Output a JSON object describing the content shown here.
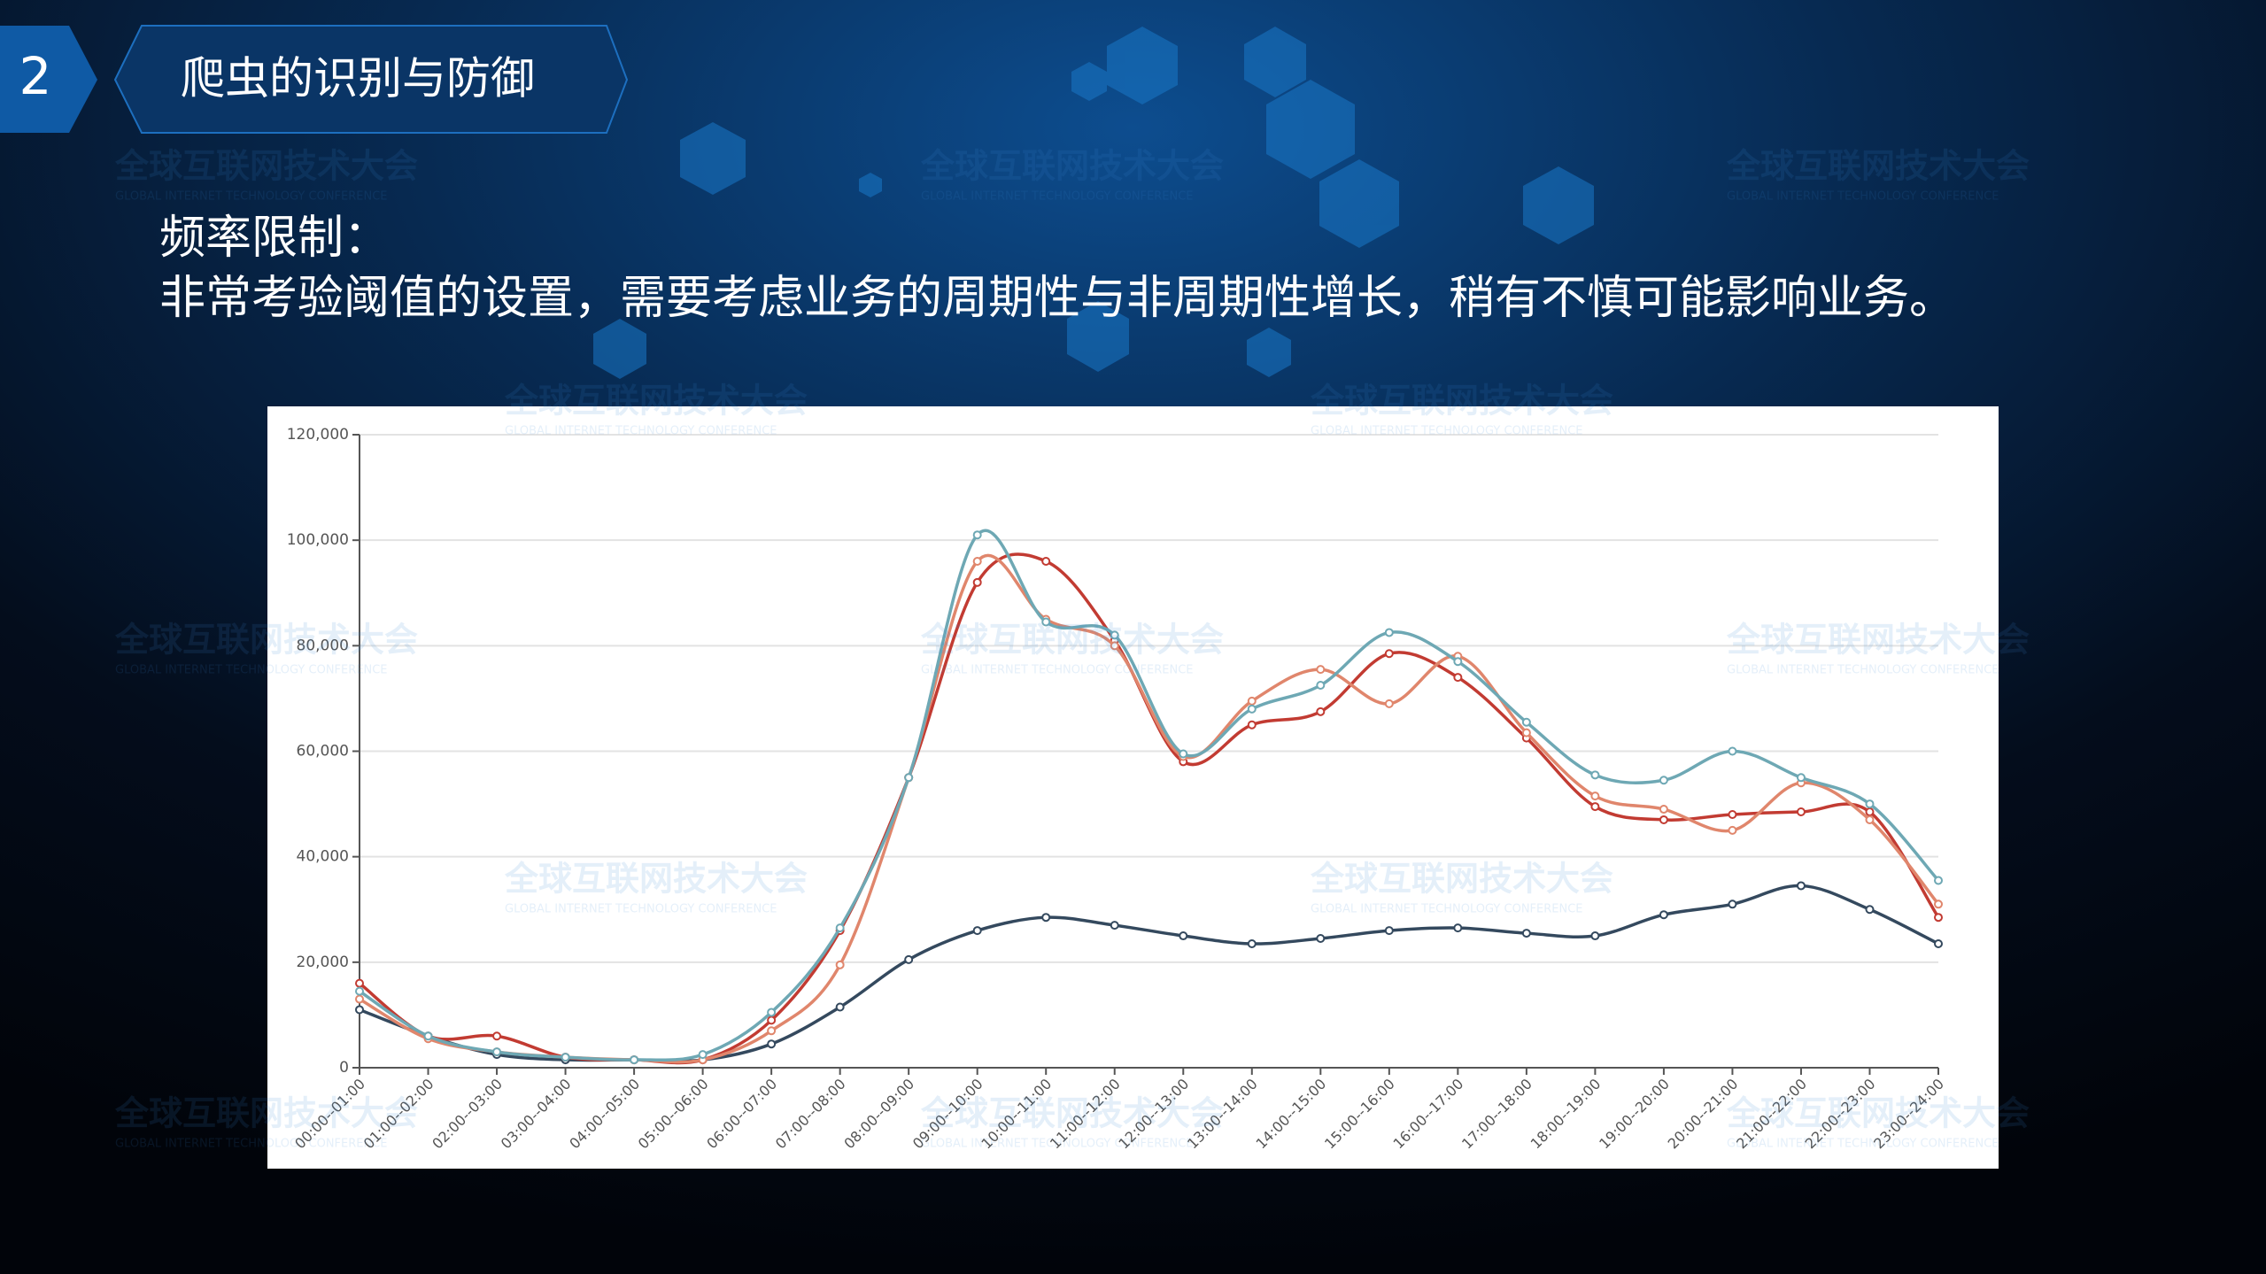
{
  "slide": {
    "number": "2",
    "title": "爬虫的识别与防御",
    "heading": "频率限制：",
    "body": "非常考验阈值的设置，需要考虑业务的周期性与非周期性增长，稍有不慎可能影响业务。",
    "watermark": [
      "全球互联网技术大会",
      "GLOBAL INTERNET TECHNOLOGY CONFERENCE"
    ]
  },
  "chart_data": {
    "type": "line",
    "categories": [
      "00:00--01:00",
      "01:00--02:00",
      "02:00--03:00",
      "03:00--04:00",
      "04:00--05:00",
      "05:00--06:00",
      "06:00--07:00",
      "07:00--08:00",
      "08:00--09:00",
      "09:00--10:00",
      "10:00--11:00",
      "11:00--12:00",
      "12:00--13:00",
      "13:00--14:00",
      "14:00--15:00",
      "15:00--16:00",
      "16:00--17:00",
      "17:00--18:00",
      "18:00--19:00",
      "19:00--20:00",
      "20:00--21:00",
      "21:00--22:00",
      "22:00--23:00",
      "23:00--24:00"
    ],
    "series": [
      {
        "color": "#34495e",
        "values": [
          11000,
          6000,
          2500,
          1500,
          1500,
          1500,
          4500,
          11500,
          20500,
          26000,
          28500,
          27000,
          25000,
          23500,
          24500,
          26000,
          26500,
          25500,
          25000,
          29000,
          31000,
          34500,
          30000,
          23500
        ]
      },
      {
        "color": "#c23b32",
        "values": [
          16000,
          6000,
          6000,
          2000,
          1500,
          1500,
          9000,
          26000,
          55000,
          92000,
          96000,
          81000,
          58000,
          65000,
          67500,
          78500,
          74000,
          62500,
          49500,
          47000,
          48000,
          48500,
          48500,
          28500
        ]
      },
      {
        "color": "#e0866c",
        "values": [
          13000,
          5500,
          3000,
          2000,
          1500,
          1500,
          7000,
          19500,
          55000,
          96000,
          85000,
          80000,
          59000,
          69500,
          75500,
          69000,
          78000,
          63500,
          51500,
          49000,
          45000,
          54000,
          47000,
          31000
        ]
      },
      {
        "color": "#6ea8b4",
        "values": [
          14500,
          6000,
          3000,
          2000,
          1500,
          2500,
          10500,
          26500,
          55000,
          101000,
          84500,
          82000,
          59500,
          68000,
          72500,
          82500,
          77000,
          65500,
          55500,
          54500,
          60000,
          55000,
          50000,
          35500
        ]
      }
    ],
    "ylim": [
      0,
      120000
    ],
    "yticks": [
      0,
      {
        "value": 20000,
        "label": "20,000"
      },
      {
        "value": 40000,
        "label": "40,000"
      },
      {
        "value": 60000,
        "label": "60,000"
      },
      {
        "value": 80000,
        "label": "80,000"
      },
      {
        "value": 100000,
        "label": "100,000"
      },
      {
        "value": 120000,
        "label": "120,000"
      }
    ],
    "grid": true
  }
}
